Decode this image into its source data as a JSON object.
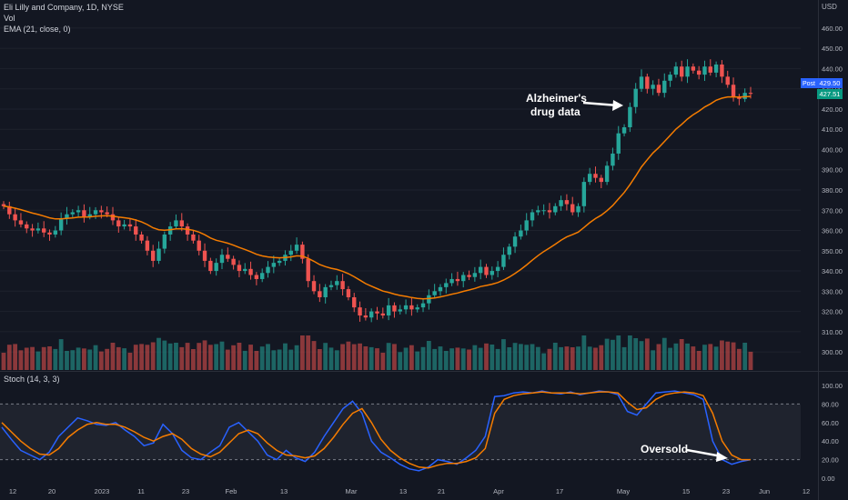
{
  "legend": {
    "symbol": "Eli Lilly and Company, 1D, NYSE",
    "vol": "Vol",
    "ema": "EMA (21, close, 0)",
    "stoch": "Stoch (14, 3, 3)",
    "currency": "USD"
  },
  "price_badges": {
    "post_label": "Post",
    "post_value": "429.50",
    "last_value": "427.51"
  },
  "colors": {
    "background": "#131722",
    "up": "#26a69a",
    "down": "#ef5350",
    "ema": "#f57c00",
    "stoch_k": "#2962ff",
    "stoch_d": "#f57c00",
    "badge": "#2962ff"
  },
  "chart_data": [
    {
      "type": "candlestick",
      "title": "Eli Lilly and Company, 1D, NYSE",
      "ylabel": "USD",
      "ylim": [
        296,
        464
      ],
      "yticks": [
        300,
        310,
        320,
        330,
        340,
        350,
        360,
        370,
        380,
        390,
        400,
        410,
        420,
        430,
        440,
        450,
        460
      ],
      "ytick_labels": [
        "300.00",
        "310.00",
        "320.00",
        "330.00",
        "340.00",
        "350.00",
        "360.00",
        "370.00",
        "380.00",
        "390.00",
        "400.00",
        "410.00",
        "420.00",
        "430.00",
        "440.00",
        "450.00",
        "460.00"
      ],
      "xtick_labels": [
        "12",
        "20",
        "2023",
        "11",
        "23",
        "Feb",
        "13",
        "Mar",
        "13",
        "21",
        "Apr",
        "17",
        "May",
        "15",
        "23",
        "Jun",
        "12"
      ],
      "closes": [
        372,
        368,
        365,
        363,
        361,
        360,
        361,
        359,
        358,
        360,
        366,
        368,
        369,
        370,
        367,
        368,
        370,
        369,
        368,
        365,
        362,
        363,
        362,
        358,
        355,
        350,
        345,
        351,
        358,
        362,
        365,
        362,
        358,
        355,
        350,
        345,
        340,
        344,
        348,
        346,
        343,
        340,
        341,
        338,
        336,
        339,
        342,
        344,
        345,
        348,
        350,
        353,
        346,
        335,
        330,
        327,
        332,
        333,
        335,
        331,
        327,
        322,
        318,
        317,
        320,
        319,
        318,
        323,
        320,
        321,
        323,
        321,
        322,
        324,
        328,
        330,
        332,
        334,
        336,
        335,
        338,
        337,
        339,
        342,
        338,
        340,
        342,
        348,
        352,
        357,
        360,
        365,
        369,
        370,
        370,
        369,
        372,
        375,
        373,
        369,
        372,
        384,
        388,
        386,
        384,
        392,
        398,
        408,
        411,
        421,
        430,
        436,
        430,
        432,
        428,
        434,
        437,
        441,
        436,
        441,
        439,
        437,
        441,
        438,
        442,
        436,
        432,
        426,
        425,
        428,
        427.51
      ],
      "annotations": [
        "Alzheimer's drug data",
        "Oversold"
      ]
    },
    {
      "type": "bar",
      "title": "Vol",
      "note": "volume bars colored by candle direction"
    },
    {
      "type": "line",
      "title": "Stoch (14, 3, 3)",
      "ylim": [
        0,
        100
      ],
      "yticks": [
        0,
        20,
        40,
        60,
        80,
        100
      ],
      "ytick_labels": [
        "0.00",
        "20.00",
        "40.00",
        "60.00",
        "80.00",
        "100.00"
      ],
      "bands": [
        20,
        80
      ],
      "k": [
        55,
        42,
        30,
        25,
        20,
        28,
        45,
        55,
        65,
        62,
        58,
        57,
        60,
        52,
        45,
        35,
        38,
        58,
        48,
        30,
        22,
        20,
        28,
        35,
        55,
        60,
        50,
        40,
        25,
        20,
        30,
        22,
        18,
        28,
        45,
        60,
        75,
        83,
        70,
        40,
        28,
        22,
        15,
        10,
        8,
        12,
        20,
        18,
        15,
        22,
        30,
        45,
        88,
        89,
        92,
        93,
        92,
        94,
        92,
        91,
        93,
        90,
        92,
        94,
        93,
        90,
        72,
        68,
        80,
        92,
        93,
        94,
        92,
        90,
        85,
        40,
        20,
        15,
        18,
        20
      ],
      "d": [
        60,
        50,
        40,
        32,
        26,
        25,
        32,
        44,
        52,
        58,
        60,
        58,
        58,
        55,
        50,
        44,
        40,
        45,
        48,
        42,
        32,
        26,
        23,
        28,
        38,
        48,
        52,
        48,
        38,
        30,
        25,
        24,
        22,
        24,
        32,
        44,
        58,
        70,
        75,
        60,
        42,
        30,
        22,
        16,
        12,
        11,
        14,
        16,
        16,
        18,
        22,
        32,
        70,
        85,
        89,
        91,
        92,
        93,
        92,
        92,
        92,
        91,
        92,
        93,
        93,
        92,
        82,
        74,
        76,
        85,
        90,
        92,
        93,
        92,
        89,
        70,
        40,
        25,
        20,
        20
      ]
    }
  ]
}
